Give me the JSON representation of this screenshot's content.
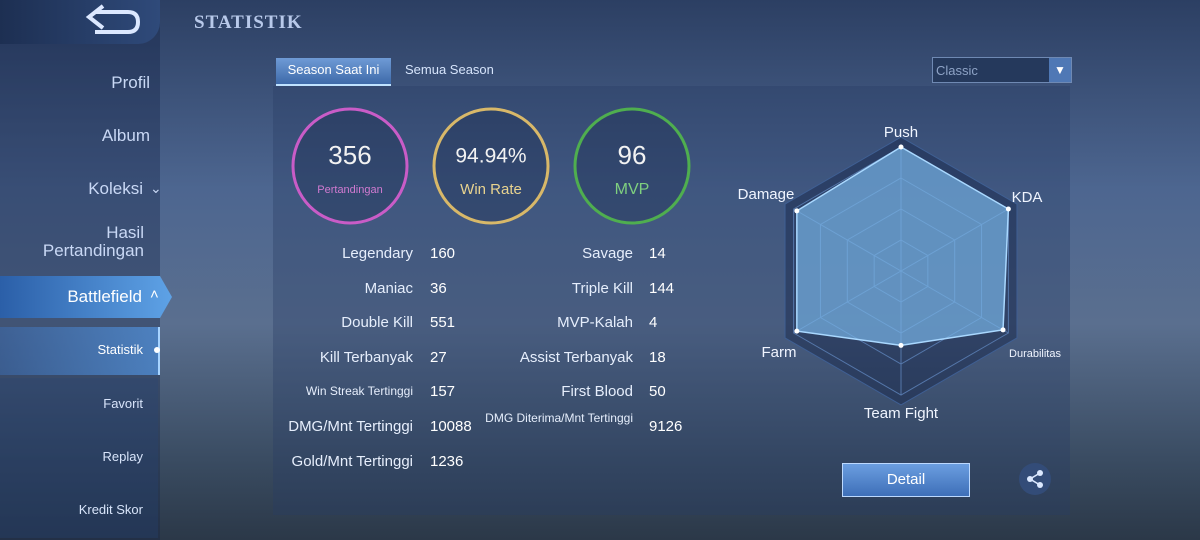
{
  "header": {
    "title": "STATISTIK"
  },
  "sidebar": {
    "items": [
      "Profil",
      "Album",
      "Koleksi",
      "Hasil Pertandingan",
      "Battlefield"
    ],
    "subitems": [
      "Statistik",
      "Favorit",
      "Replay",
      "Kredit Skor"
    ]
  },
  "tabs": [
    "Season Saat Ini",
    "Semua Season"
  ],
  "mode": "Classic",
  "summary": [
    {
      "value": "356",
      "label": "Pertandingan"
    },
    {
      "value": "94.94%",
      "label": "Win Rate"
    },
    {
      "value": "96",
      "label": "MVP"
    }
  ],
  "stats": {
    "left": [
      {
        "label": "Legendary",
        "value": 160
      },
      {
        "label": "Maniac",
        "value": 36
      },
      {
        "label": "Double Kill",
        "value": 551
      },
      {
        "label": "Kill Terbanyak",
        "value": 27
      },
      {
        "label": "Win Streak Tertinggi",
        "value": 157
      },
      {
        "label": "DMG/Mnt Tertinggi",
        "value": 10088
      },
      {
        "label": "Gold/Mnt Tertinggi",
        "value": 1236
      }
    ],
    "right": [
      {
        "label": "Savage",
        "value": 14
      },
      {
        "label": "Triple Kill",
        "value": 144
      },
      {
        "label": "MVP-Kalah",
        "value": 4
      },
      {
        "label": "Assist Terbanyak",
        "value": 18
      },
      {
        "label": "First Blood",
        "value": 50
      },
      {
        "label": "DMG Diterima/Mnt Tertinggi",
        "value": 9126
      }
    ]
  },
  "radar": {
    "type": "radar",
    "labels": [
      "Push",
      "KDA",
      "Durabilitas",
      "Team Fight",
      "Farm",
      "Damage"
    ],
    "values": [
      100,
      100,
      95,
      60,
      97,
      97
    ],
    "rlim": [
      0,
      100
    ],
    "rticks": [
      25,
      50,
      75,
      100
    ]
  },
  "detail_button": "Detail"
}
